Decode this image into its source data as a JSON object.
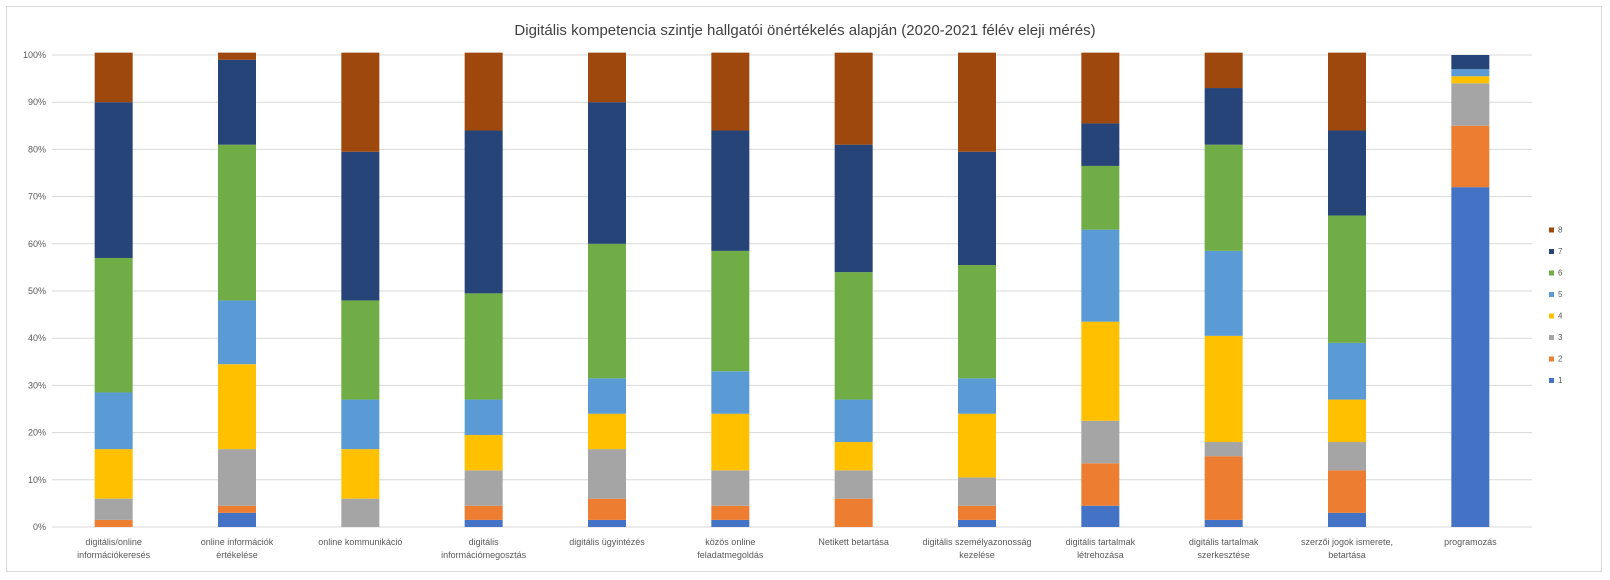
{
  "chart_data": {
    "type": "bar",
    "stacked": true,
    "percent": true,
    "title": "Digitális kompetencia szintje hallgatói önértékelés alapján (2020-2021 félév eleji mérés)",
    "xlabel": "",
    "ylabel": "",
    "ylim": [
      0,
      100
    ],
    "yticks": [
      "0%",
      "10%",
      "20%",
      "30%",
      "40%",
      "50%",
      "60%",
      "70%",
      "80%",
      "90%",
      "100%"
    ],
    "grid": true,
    "legend_position": "right",
    "categories": [
      [
        "digitális/online",
        "információkeresés"
      ],
      [
        "online információk",
        "értékelése"
      ],
      [
        "online kommunikáció"
      ],
      [
        "digitális",
        "információmegosztás"
      ],
      [
        "digitális ügyintézés"
      ],
      [
        "közös online",
        "feladatmegoldás"
      ],
      [
        "Netikett betartása"
      ],
      [
        "digitális személyazonosság",
        "kezelése"
      ],
      [
        "digitális tartalmak",
        "létrehozása"
      ],
      [
        "digitális tartalmak",
        "szerkesztése"
      ],
      [
        "szerzői jogok ismerete,",
        "betartása"
      ],
      [
        "programozás"
      ]
    ],
    "series": [
      {
        "name": "1",
        "color": "#4472c4",
        "values": [
          0,
          3,
          0,
          1.5,
          1.5,
          1.5,
          0,
          1.5,
          4.5,
          1.5,
          3,
          72
        ]
      },
      {
        "name": "2",
        "color": "#ed7d31",
        "values": [
          1.5,
          1.5,
          0,
          3,
          4.5,
          3,
          6,
          3,
          9,
          13.5,
          9,
          13
        ]
      },
      {
        "name": "3",
        "color": "#a5a5a5",
        "values": [
          4.5,
          12,
          6,
          7.5,
          10.5,
          7.5,
          6,
          6,
          9,
          3,
          6,
          9
        ]
      },
      {
        "name": "4",
        "color": "#ffc000",
        "values": [
          10.5,
          18,
          10.5,
          7.5,
          7.5,
          12,
          6,
          13.5,
          21,
          22.5,
          9,
          1.5
        ]
      },
      {
        "name": "5",
        "color": "#5b9bd5",
        "values": [
          12,
          13.5,
          10.5,
          7.5,
          7.5,
          9,
          9,
          7.5,
          19.5,
          18,
          12,
          1.5
        ]
      },
      {
        "name": "6",
        "color": "#70ad47",
        "values": [
          28.5,
          33,
          21,
          22.5,
          28.5,
          25.5,
          27,
          24,
          13.5,
          22.5,
          27,
          0
        ]
      },
      {
        "name": "7",
        "color": "#264478",
        "values": [
          33,
          18,
          31.5,
          34.5,
          30,
          25.5,
          27,
          24,
          9,
          12,
          18,
          3
        ]
      },
      {
        "name": "8",
        "color": "#9e480e",
        "values": [
          10.5,
          1.5,
          21,
          16.5,
          10.5,
          16.5,
          19.5,
          21,
          15,
          7.5,
          16.5,
          0
        ]
      }
    ]
  }
}
